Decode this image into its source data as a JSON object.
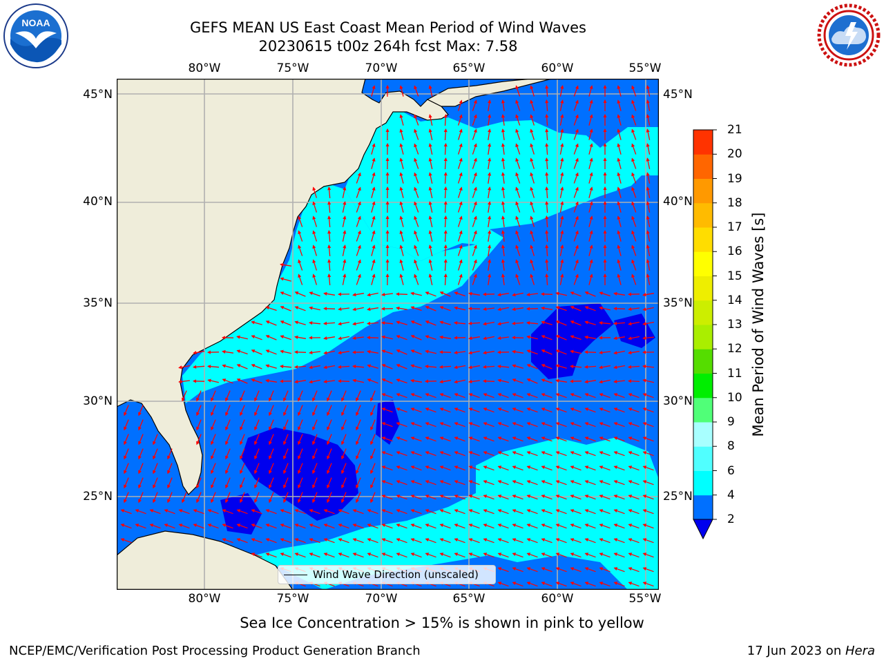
{
  "title_line1": "GEFS MEAN US East Coast Mean Period of Wind Waves",
  "title_line2": "20230615 t00z 264h fcst   Max: 7.58",
  "map": {
    "lon_labels": [
      "80°W",
      "75°W",
      "70°W",
      "65°W",
      "60°W",
      "55°W"
    ],
    "lat_labels": [
      "45°N",
      "40°N",
      "35°N",
      "30°N",
      "25°N"
    ],
    "colors": {
      "land": "#efedda",
      "ocean_low": "#0070ff",
      "ocean_calm": "#0000ee",
      "ocean_high": "#00ffff",
      "arrows": "#ff0000",
      "grid": "#b0b0b0"
    }
  },
  "legend": {
    "label": "Wind Wave Direction (unscaled)"
  },
  "colorbar": {
    "label": "Mean Period of Wind Waves [s]",
    "ticks": [
      "2",
      "4",
      "6",
      "8",
      "9",
      "10",
      "11",
      "12",
      "13",
      "14",
      "15",
      "16",
      "17",
      "18",
      "19",
      "20",
      "21"
    ],
    "colors": [
      "#0070ff",
      "#00ffff",
      "#50ffff",
      "#a8ffff",
      "#50ff78",
      "#00ee00",
      "#55dd00",
      "#aaee00",
      "#ccee00",
      "#eeee00",
      "#ffff00",
      "#ffdd00",
      "#ffbb00",
      "#ff9900",
      "#ff6600",
      "#ff3300",
      "#ff0000"
    ],
    "under_color": "#0000ee"
  },
  "caption": "Sea Ice Concentration > 15% is shown in pink to yellow",
  "credit": "NCEP/EMC/Verification Post Processing Product Generation Branch",
  "date_prefix": "17 Jun 2023 on ",
  "date_host": "Hera",
  "logos": {
    "left_text": "NOAA",
    "right_text": "NATIONAL WEATHER SERVICE"
  }
}
